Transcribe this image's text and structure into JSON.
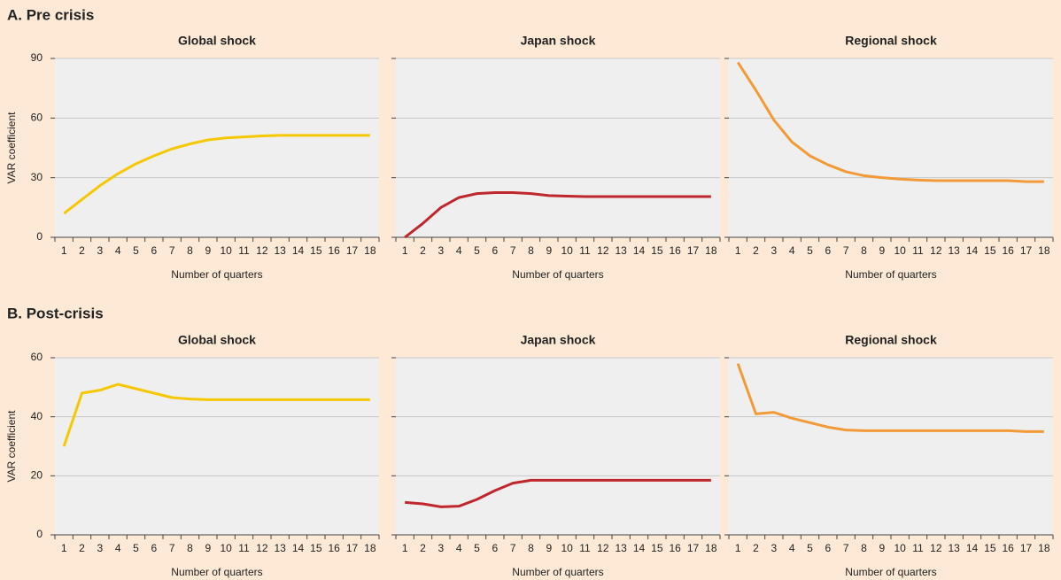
{
  "sections": [
    {
      "title": "A. Pre crisis"
    },
    {
      "title": "B. Post-crisis"
    }
  ],
  "chart_data": [
    {
      "type": "line",
      "title": "Global shock",
      "xlabel": "Number of quarters",
      "ylabel": "VAR coefficient",
      "categories": [
        1,
        2,
        3,
        4,
        5,
        6,
        7,
        8,
        9,
        10,
        11,
        12,
        13,
        14,
        15,
        16,
        17,
        18
      ],
      "values": [
        12,
        19,
        26,
        32,
        37,
        41,
        44.5,
        47,
        49,
        50,
        50.5,
        51,
        51.3,
        51.3,
        51.3,
        51.3,
        51.3,
        51.3
      ],
      "color": "#f5c800",
      "ylim": [
        0,
        90
      ],
      "yticks": [
        0,
        30,
        60,
        90
      ],
      "grid": true,
      "show_ytick_labels": true
    },
    {
      "type": "line",
      "title": "Japan shock",
      "xlabel": "Number of quarters",
      "categories": [
        1,
        2,
        3,
        4,
        5,
        6,
        7,
        8,
        9,
        10,
        11,
        12,
        13,
        14,
        15,
        16,
        17,
        18
      ],
      "values": [
        0,
        7,
        15,
        20,
        22,
        22.5,
        22.5,
        22,
        21,
        20.7,
        20.5,
        20.5,
        20.5,
        20.5,
        20.5,
        20.5,
        20.5,
        20.5
      ],
      "color": "#c0272d",
      "ylim": [
        0,
        90
      ],
      "yticks": [
        0,
        30,
        60,
        90
      ],
      "grid": true,
      "show_ytick_labels": false
    },
    {
      "type": "line",
      "title": "Regional shock",
      "xlabel": "Number of quarters",
      "categories": [
        1,
        2,
        3,
        4,
        5,
        6,
        7,
        8,
        9,
        10,
        11,
        12,
        13,
        14,
        15,
        16,
        17,
        18
      ],
      "values": [
        88,
        74,
        59,
        48,
        41,
        36.5,
        33,
        31,
        30,
        29.3,
        28.8,
        28.5,
        28.5,
        28.5,
        28.5,
        28.5,
        28,
        28
      ],
      "color": "#f29a38",
      "ylim": [
        0,
        90
      ],
      "yticks": [
        0,
        30,
        60,
        90
      ],
      "grid": true,
      "show_ytick_labels": false
    },
    {
      "type": "line",
      "title": "Global shock",
      "xlabel": "Number of quarters",
      "ylabel": "VAR coefficient",
      "categories": [
        1,
        2,
        3,
        4,
        5,
        6,
        7,
        8,
        9,
        10,
        11,
        12,
        13,
        14,
        15,
        16,
        17,
        18
      ],
      "values": [
        30,
        48,
        49,
        51,
        49.5,
        48,
        46.5,
        46,
        45.8,
        45.8,
        45.8,
        45.8,
        45.8,
        45.8,
        45.8,
        45.8,
        45.8,
        45.8
      ],
      "color": "#f5c800",
      "ylim": [
        0,
        60
      ],
      "yticks": [
        0,
        20,
        40,
        60
      ],
      "grid": true,
      "show_ytick_labels": true
    },
    {
      "type": "line",
      "title": "Japan shock",
      "xlabel": "Number of quarters",
      "categories": [
        1,
        2,
        3,
        4,
        5,
        6,
        7,
        8,
        9,
        10,
        11,
        12,
        13,
        14,
        15,
        16,
        17,
        18
      ],
      "values": [
        11,
        10.5,
        9.5,
        9.7,
        12,
        15,
        17.5,
        18.5,
        18.5,
        18.5,
        18.5,
        18.5,
        18.5,
        18.5,
        18.5,
        18.5,
        18.5,
        18.5
      ],
      "color": "#c0272d",
      "ylim": [
        0,
        60
      ],
      "yticks": [
        0,
        20,
        40,
        60
      ],
      "grid": true,
      "show_ytick_labels": false
    },
    {
      "type": "line",
      "title": "Regional shock",
      "xlabel": "Number of quarters",
      "categories": [
        1,
        2,
        3,
        4,
        5,
        6,
        7,
        8,
        9,
        10,
        11,
        12,
        13,
        14,
        15,
        16,
        17,
        18
      ],
      "values": [
        58,
        41,
        41.5,
        39.5,
        38,
        36.5,
        35.5,
        35.3,
        35.3,
        35.3,
        35.3,
        35.3,
        35.3,
        35.3,
        35.3,
        35.3,
        35,
        35
      ],
      "color": "#f29a38",
      "ylim": [
        0,
        60
      ],
      "yticks": [
        0,
        20,
        40,
        60
      ],
      "grid": true,
      "show_ytick_labels": false
    }
  ]
}
